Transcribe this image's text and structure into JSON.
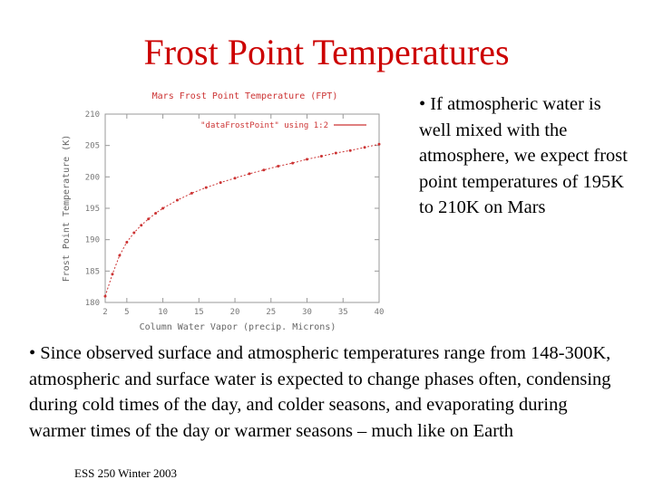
{
  "slide": {
    "title": "Frost Point Temperatures",
    "bullet_right": "• If atmospheric water is well mixed with the atmosphere, we expect frost point temperatures of 195K to 210K on Mars",
    "bullet_bottom": "• Since observed surface and atmospheric temperatures range from 148-300K, atmospheric and surface water is expected to change phases often, condensing during cold times of the day, and colder seasons, and evaporating during warmer times of the day or warmer  seasons – much like on Earth",
    "footer": "ESS 250 Winter 2003"
  },
  "colors": {
    "title": "#cc0000",
    "series": "#cc3333",
    "axis": "#999999",
    "plot_title": "#cc3333"
  },
  "chart_data": {
    "type": "line",
    "title": "Mars Frost Point Temperature (FPT)",
    "xlabel": "Column Water Vapor (precip. Microns)",
    "ylabel": "Frost Point Temperature (K)",
    "xlim": [
      2,
      40
    ],
    "ylim": [
      180,
      210
    ],
    "xticks": [
      2,
      5,
      10,
      15,
      20,
      25,
      30,
      35,
      40
    ],
    "yticks": [
      180,
      185,
      190,
      195,
      200,
      205,
      210
    ],
    "legend_position": "top-right",
    "series": [
      {
        "name": "\"dataFrostPoint\" using 1:2",
        "x": [
          2,
          3,
          4,
          5,
          6,
          7,
          8,
          9,
          10,
          12,
          14,
          16,
          18,
          20,
          22,
          24,
          26,
          28,
          30,
          32,
          34,
          36,
          38,
          40
        ],
        "y": [
          181,
          184.5,
          187.5,
          189.6,
          191.1,
          192.3,
          193.3,
          194.2,
          195.0,
          196.3,
          197.4,
          198.3,
          199.1,
          199.8,
          200.5,
          201.1,
          201.7,
          202.2,
          202.8,
          203.3,
          203.8,
          204.2,
          204.7,
          205.2
        ]
      }
    ]
  }
}
